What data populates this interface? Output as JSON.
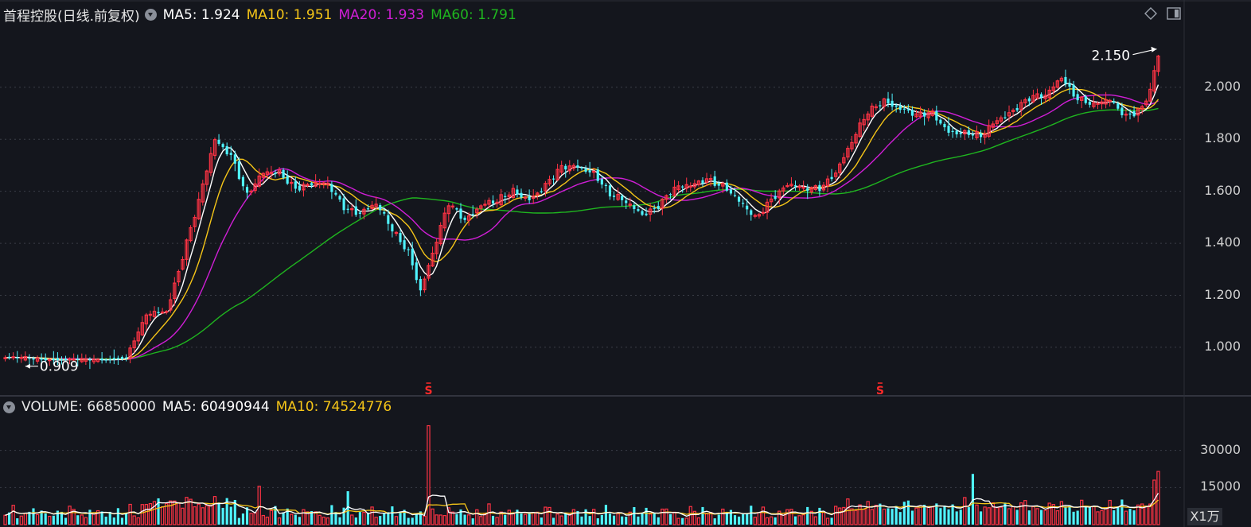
{
  "colors": {
    "background": "#14161d",
    "up": "#ff3344",
    "down": "#4ff4ff",
    "ma5": "#ffffff",
    "ma10": "#f5c518",
    "ma20": "#d01ed6",
    "ma60": "#1fb51f",
    "grid": "#3a3d47"
  },
  "price_panel": {
    "title": "首程控股(日线.前复权)",
    "dropdown_icon": "chevron-down-icon",
    "ma": [
      {
        "label": "MA5: 1.924",
        "color": "#ffffff"
      },
      {
        "label": "MA10: 1.951",
        "color": "#f5c518"
      },
      {
        "label": "MA20: 1.933",
        "color": "#d01ed6"
      },
      {
        "label": "MA60: 1.791",
        "color": "#1fb51f"
      }
    ],
    "max_label": "2.150",
    "min_label": "0.909",
    "signal_marker": "S"
  },
  "volume_panel": {
    "volume_label": "VOLUME: 66850000",
    "ma5_label": "MA5: 60490944",
    "ma10_label": "MA10: 74524776",
    "unit": "X1万"
  },
  "chart_data": [
    {
      "type": "candlestick",
      "title": "首程控股(日线.前复权)",
      "ylim": [
        0.85,
        2.25
      ],
      "yticks": [
        "1.000",
        "1.200",
        "1.400",
        "1.600",
        "1.800",
        "2.000"
      ],
      "grid": true,
      "high": 2.15,
      "low": 0.909,
      "ma_latest": {
        "MA5": 1.924,
        "MA10": 1.951,
        "MA20": 1.933,
        "MA60": 1.791
      },
      "anchors": [
        [
          0,
          0.96
        ],
        [
          20,
          0.95
        ],
        [
          30,
          0.96
        ],
        [
          35,
          1.12
        ],
        [
          40,
          1.15
        ],
        [
          44,
          1.35
        ],
        [
          48,
          1.55
        ],
        [
          52,
          1.8
        ],
        [
          56,
          1.75
        ],
        [
          60,
          1.58
        ],
        [
          64,
          1.66
        ],
        [
          68,
          1.68
        ],
        [
          72,
          1.62
        ],
        [
          76,
          1.62
        ],
        [
          80,
          1.62
        ],
        [
          84,
          1.55
        ],
        [
          88,
          1.52
        ],
        [
          92,
          1.54
        ],
        [
          96,
          1.45
        ],
        [
          100,
          1.38
        ],
        [
          103,
          1.22
        ],
        [
          106,
          1.35
        ],
        [
          110,
          1.55
        ],
        [
          114,
          1.5
        ],
        [
          118,
          1.55
        ],
        [
          122,
          1.55
        ],
        [
          126,
          1.6
        ],
        [
          130,
          1.58
        ],
        [
          134,
          1.62
        ],
        [
          138,
          1.68
        ],
        [
          142,
          1.7
        ],
        [
          146,
          1.68
        ],
        [
          150,
          1.58
        ],
        [
          154,
          1.55
        ],
        [
          158,
          1.52
        ],
        [
          162,
          1.55
        ],
        [
          166,
          1.6
        ],
        [
          170,
          1.62
        ],
        [
          174,
          1.66
        ],
        [
          178,
          1.62
        ],
        [
          182,
          1.55
        ],
        [
          186,
          1.5
        ],
        [
          190,
          1.58
        ],
        [
          194,
          1.62
        ],
        [
          198,
          1.6
        ],
        [
          202,
          1.62
        ],
        [
          206,
          1.68
        ],
        [
          210,
          1.78
        ],
        [
          214,
          1.9
        ],
        [
          218,
          1.96
        ],
        [
          222,
          1.92
        ],
        [
          226,
          1.88
        ],
        [
          230,
          1.9
        ],
        [
          234,
          1.84
        ],
        [
          238,
          1.82
        ],
        [
          242,
          1.8
        ],
        [
          246,
          1.88
        ],
        [
          250,
          1.92
        ],
        [
          254,
          1.95
        ],
        [
          258,
          1.96
        ],
        [
          262,
          2.05
        ],
        [
          266,
          1.96
        ],
        [
          270,
          1.92
        ],
        [
          274,
          1.95
        ],
        [
          278,
          1.9
        ],
        [
          282,
          1.92
        ],
        [
          284,
          1.98
        ],
        [
          286,
          2.12
        ]
      ],
      "signals_at": [
        105,
        217
      ]
    },
    {
      "type": "bar",
      "title": "VOLUME",
      "ylim": [
        0,
        45000
      ],
      "yticks": [
        "15000",
        "30000"
      ],
      "unit": "X1万",
      "volume": 66850000,
      "ma5": 60490944,
      "ma10": 74524776
    }
  ]
}
